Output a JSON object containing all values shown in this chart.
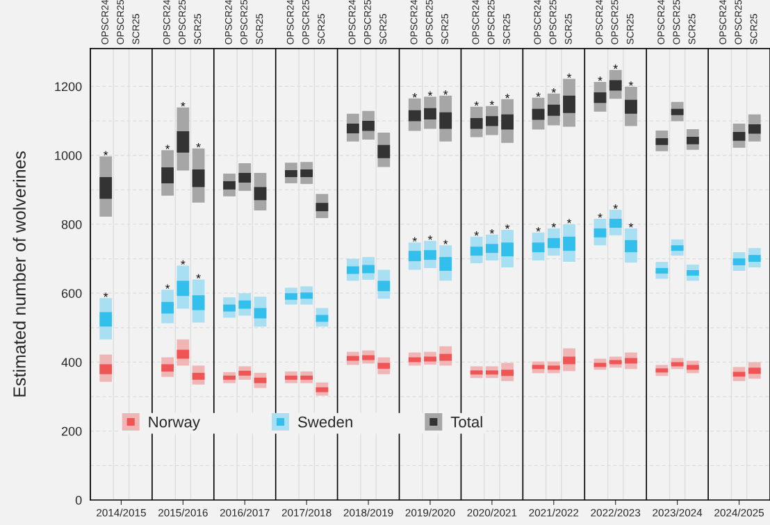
{
  "chart_data": {
    "type": "bar",
    "ylabel": "Estimated number of wolverines",
    "categories": [
      "OPSCR24",
      "OPSCR25",
      "SCR25",
      null,
      "OPSCR24",
      "OPSCR25",
      "SCR25",
      null,
      "OPSCR24",
      "OPSCR25",
      "SCR25",
      null,
      "OPSCR24",
      "OPSCR25",
      "SCR25",
      null,
      "OPSCR24",
      "OPSCR25",
      "SCR25",
      null,
      "OPSCR24",
      "OPSCR25",
      "SCR25",
      null,
      "OPSCR24",
      "OPSCR25",
      "SCR25",
      null,
      "OPSCR24",
      "OPSCR25",
      "SCR25",
      null,
      "OPSCR24",
      "OPSCR25",
      "SCR25",
      null,
      "OPSCR24",
      "OPSCR25",
      "SCR25",
      null,
      "OPSCR24",
      "OPSCR25",
      "SCR25"
    ],
    "ylim": [
      0,
      1310
    ],
    "yticks": [
      0,
      {
        "value": 100,
        "label": null
      },
      200,
      {
        "value": 300,
        "label": null
      },
      400,
      {
        "value": 500,
        "label": null
      },
      600,
      {
        "value": 700,
        "label": null
      },
      800,
      {
        "value": 900,
        "label": null
      },
      1000,
      {
        "value": 1100,
        "label": null
      },
      1200
    ],
    "grid": true,
    "legend": "bottom left",
    "series": [
      {
        "name": "Norway",
        "color": "#f0b6b6",
        "base": [
          343,
          null,
          null,
          null,
          357,
          390,
          335,
          null,
          339,
          349,
          325,
          null,
          339,
          339,
          303,
          null,
          392,
          396,
          365,
          null,
          390,
          393,
          390,
          null,
          354,
          354,
          345,
          null,
          368,
          368,
          374,
          null,
          378,
          384,
          380,
          null,
          360,
          380,
          368,
          null,
          null,
          345,
          352
        ],
        "values": [
          79,
          null,
          null,
          null,
          57,
          76,
          55,
          null,
          32,
          39,
          44,
          null,
          34,
          34,
          38,
          null,
          38,
          38,
          49,
          null,
          38,
          37,
          56,
          null,
          34,
          34,
          53,
          null,
          34,
          34,
          66,
          null,
          32,
          32,
          48,
          null,
          32,
          32,
          36,
          null,
          null,
          41,
          48
        ]
      },
      {
        "color": "#ef5555",
        "base": [
          365,
          null,
          null,
          null,
          373,
          410,
          349,
          null,
          349,
          361,
          339,
          null,
          349,
          349,
          313,
          null,
          404,
          406,
          381,
          null,
          400,
          402,
          404,
          null,
          364,
          364,
          360,
          null,
          380,
          378,
          394,
          null,
          386,
          394,
          396,
          null,
          370,
          388,
          378,
          null,
          null,
          358,
          366
        ],
        "values": [
          29,
          null,
          null,
          null,
          21,
          26,
          20,
          null,
          12,
          14,
          16,
          null,
          12,
          12,
          14,
          null,
          14,
          14,
          17,
          null,
          14,
          14,
          20,
          null,
          12,
          12,
          18,
          null,
          12,
          12,
          22,
          null,
          12,
          12,
          16,
          null,
          12,
          12,
          14,
          null,
          null,
          14,
          18
        ]
      },
      {
        "name": "Sweden",
        "color": "#a8dff2",
        "base": [
          466,
          null,
          null,
          null,
          513,
          555,
          515,
          null,
          529,
          535,
          503,
          null,
          567,
          567,
          503,
          null,
          636,
          639,
          584,
          null,
          668,
          673,
          636,
          null,
          687,
          695,
          675,
          null,
          695,
          709,
          691,
          null,
          739,
          768,
          689,
          null,
          642,
          709,
          636,
          null,
          null,
          665,
          675
        ],
        "values": [
          120,
          null,
          null,
          null,
          97,
          125,
          125,
          null,
          59,
          65,
          87,
          null,
          49,
          53,
          54,
          null,
          64,
          66,
          84,
          null,
          79,
          79,
          103,
          null,
          77,
          75,
          109,
          null,
          81,
          79,
          109,
          null,
          77,
          74,
          99,
          null,
          49,
          47,
          47,
          null,
          null,
          54,
          56
        ],
        "value_labels": [
          "*",
          null,
          null,
          null,
          "*",
          "*",
          "*",
          null,
          null,
          null,
          null,
          null,
          null,
          null,
          null,
          null,
          null,
          null,
          null,
          null,
          "*",
          "*",
          "*",
          null,
          "*",
          "*",
          "*",
          null,
          "*",
          "*",
          "*",
          null,
          "*",
          "*",
          "*",
          null,
          null,
          null,
          null,
          null,
          null,
          null,
          null
        ]
      },
      {
        "color": "#33bfec",
        "base": [
          503,
          null,
          null,
          null,
          541,
          592,
          551,
          null,
          547,
          555,
          527,
          null,
          581,
          584,
          517,
          null,
          656,
          658,
          606,
          null,
          693,
          697,
          665,
          null,
          709,
          717,
          707,
          null,
          719,
          731,
          723,
          null,
          762,
          790,
          719,
          null,
          657,
          723,
          651,
          null,
          null,
          681,
          691
        ],
        "values": [
          42,
          null,
          null,
          null,
          34,
          44,
          43,
          null,
          20,
          24,
          30,
          null,
          19,
          18,
          20,
          null,
          22,
          24,
          30,
          null,
          30,
          28,
          40,
          null,
          26,
          26,
          40,
          null,
          28,
          29,
          41,
          null,
          26,
          26,
          35,
          null,
          16,
          16,
          16,
          null,
          null,
          20,
          20
        ]
      },
      {
        "name": "Total",
        "color": "#a6a6a6",
        "base": [
          822,
          null,
          null,
          null,
          883,
          956,
          863,
          null,
          881,
          897,
          840,
          null,
          919,
          917,
          818,
          null,
          1040,
          1046,
          966,
          null,
          1071,
          1077,
          1040,
          null,
          1053,
          1059,
          1036,
          null,
          1075,
          1087,
          1083,
          null,
          1127,
          1164,
          1085,
          null,
          1012,
          1099,
          1016,
          null,
          null,
          1022,
          1040
        ],
        "values": [
          175,
          null,
          null,
          null,
          132,
          183,
          157,
          null,
          66,
          80,
          109,
          null,
          60,
          64,
          70,
          null,
          81,
          83,
          100,
          null,
          94,
          93,
          133,
          null,
          88,
          84,
          127,
          null,
          92,
          92,
          139,
          null,
          86,
          84,
          114,
          null,
          60,
          56,
          60,
          null,
          null,
          70,
          79
        ],
        "value_labels": [
          "*",
          null,
          null,
          null,
          "*",
          "*",
          "*",
          null,
          null,
          null,
          null,
          null,
          null,
          null,
          null,
          null,
          null,
          null,
          null,
          null,
          "*",
          "*",
          "*",
          null,
          "*",
          "*",
          "*",
          null,
          "*",
          "*",
          "*",
          null,
          "*",
          "*",
          "*",
          null,
          null,
          null,
          null,
          null,
          null,
          null,
          null
        ]
      },
      {
        "color": "#333333",
        "base": [
          874,
          null,
          null,
          null,
          919,
          1008,
          908,
          null,
          901,
          921,
          870,
          null,
          937,
          937,
          838,
          null,
          1064,
          1071,
          992,
          null,
          1099,
          1104,
          1077,
          null,
          1077,
          1085,
          1075,
          null,
          1103,
          1115,
          1123,
          null,
          1152,
          1188,
          1121,
          null,
          1030,
          1117,
          1032,
          null,
          null,
          1042,
          1063
        ],
        "values": [
          63,
          null,
          null,
          null,
          46,
          62,
          51,
          null,
          24,
          28,
          38,
          null,
          20,
          22,
          24,
          null,
          28,
          29,
          38,
          null,
          32,
          33,
          48,
          null,
          31,
          29,
          44,
          null,
          32,
          32,
          50,
          null,
          31,
          30,
          40,
          null,
          20,
          18,
          22,
          null,
          null,
          26,
          27
        ]
      }
    ],
    "annotations": [
      "2014/2015",
      "2015/2016",
      "2016/2017",
      "2017/2018",
      "2018/2019",
      "2019/2020",
      "2020/2021",
      "2021/2022",
      "2022/2023",
      "2023/2024",
      "2024/2025"
    ]
  }
}
